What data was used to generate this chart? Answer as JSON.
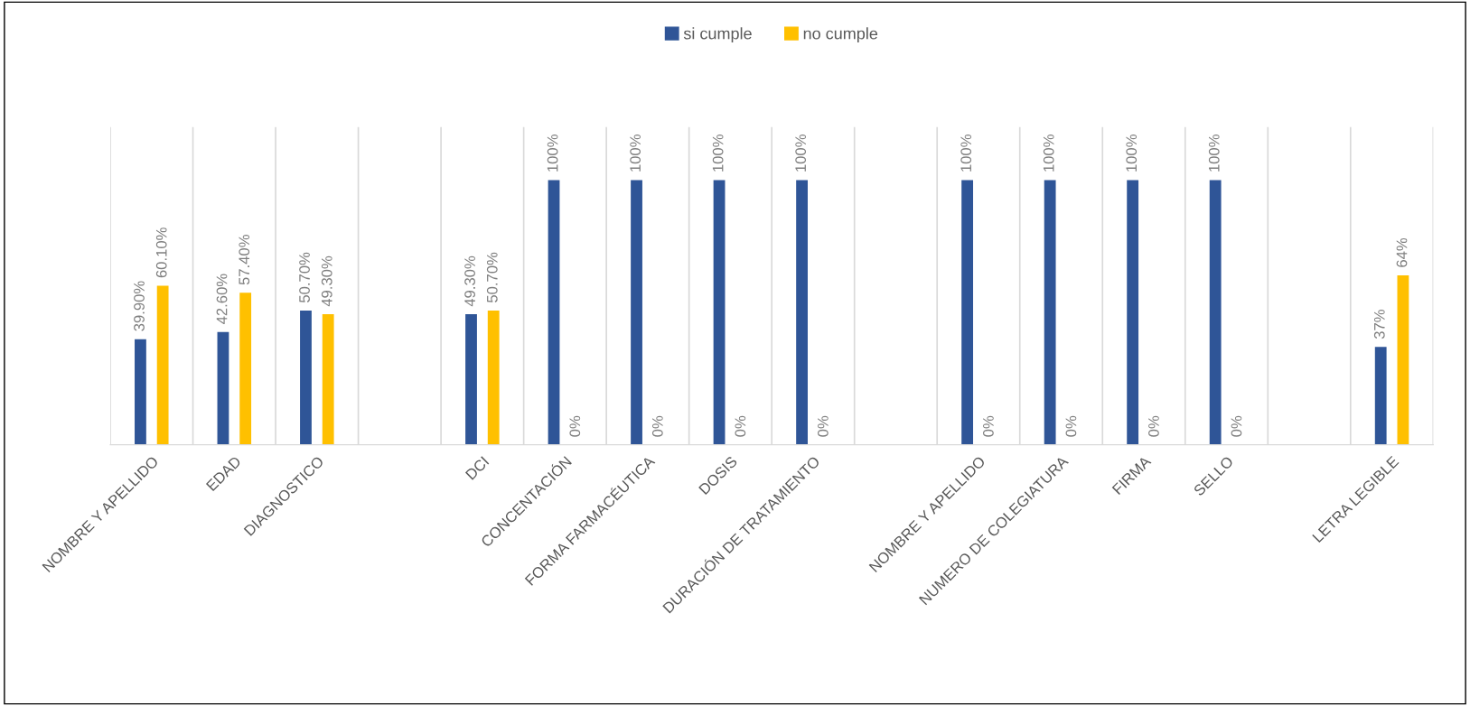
{
  "chart_data": {
    "type": "bar",
    "categories": [
      "NOMBRE Y APELLIDO",
      "EDAD",
      "DIAGNOSTICO",
      null,
      "DCI",
      "CONCENTACIÓN",
      "FORMA FARMACÉUTICA",
      "DOSIS",
      "DURACIÓN DE TRATAMIENTO",
      null,
      "NOMBRE Y APELLIDO",
      "NUMERO DE COLEGIATURA",
      "FIRMA",
      "SELLO",
      null,
      "LETRA LEGIBLE"
    ],
    "series": [
      {
        "name": "si cumple",
        "color": "#2f5597",
        "values": [
          39.9,
          42.6,
          50.7,
          null,
          49.3,
          100,
          100,
          100,
          100,
          null,
          100,
          100,
          100,
          100,
          null,
          37
        ],
        "value_labels": [
          "39.90%",
          "42.60%",
          "50.70%",
          null,
          "49.30%",
          "100%",
          "100%",
          "100%",
          "100%",
          null,
          "100%",
          "100%",
          "100%",
          "100%",
          null,
          "37%"
        ]
      },
      {
        "name": "no cumple",
        "color": "#ffc000",
        "values": [
          60.1,
          57.4,
          49.3,
          null,
          50.7,
          0,
          0,
          0,
          0,
          null,
          0,
          0,
          0,
          0,
          null,
          64
        ],
        "value_labels": [
          "60.10%",
          "57.40%",
          "49.30%",
          null,
          "50.70%",
          "0%",
          "0%",
          "0%",
          "0%",
          null,
          "0%",
          "0%",
          "0%",
          "0%",
          null,
          "64%"
        ]
      }
    ],
    "grid": "x",
    "legend": "top"
  }
}
